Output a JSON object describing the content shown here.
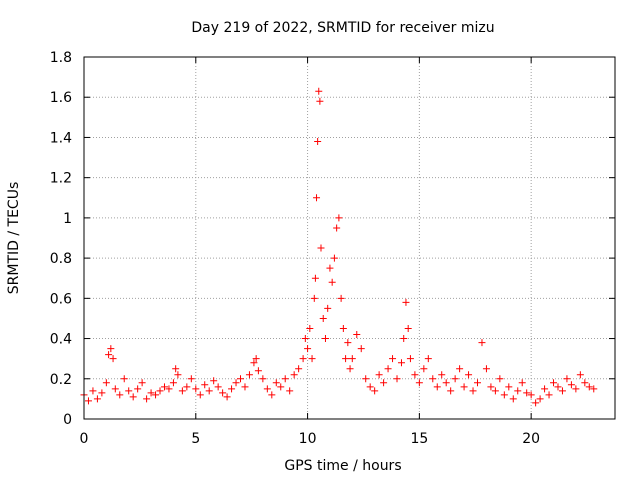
{
  "chart_data": {
    "type": "scatter",
    "title": "Day 219 of 2022, SRMTID for receiver mizu",
    "xlabel": "GPS time / hours",
    "ylabel": "SRMTID / TECUs",
    "xlim": [
      0,
      23.75
    ],
    "ylim": [
      0,
      1.8
    ],
    "xticks": [
      0,
      5,
      10,
      15,
      20
    ],
    "xtick_labels": [
      "0",
      "5",
      "10",
      "15",
      "20"
    ],
    "yticks": [
      0,
      0.2,
      0.4,
      0.6,
      0.8,
      1.0,
      1.2,
      1.4,
      1.6,
      1.8
    ],
    "ytick_labels": [
      "0",
      "0.2",
      "0.4",
      "0.6",
      "0.8",
      "1",
      "1.2",
      "1.4",
      "1.6",
      "1.8"
    ],
    "grid": true,
    "marker": "plus",
    "series": [
      {
        "name": "SRMTID",
        "color": "#ff0000",
        "x": [
          0.0,
          0.2,
          0.4,
          0.6,
          0.8,
          1.0,
          1.1,
          1.2,
          1.3,
          1.4,
          1.6,
          1.8,
          2.0,
          2.2,
          2.4,
          2.6,
          2.8,
          3.0,
          3.2,
          3.4,
          3.6,
          3.8,
          4.0,
          4.1,
          4.2,
          4.4,
          4.6,
          4.8,
          5.0,
          5.2,
          5.4,
          5.6,
          5.8,
          6.0,
          6.2,
          6.4,
          6.6,
          6.8,
          7.0,
          7.2,
          7.4,
          7.6,
          7.7,
          7.8,
          8.0,
          8.2,
          8.4,
          8.6,
          8.8,
          9.0,
          9.2,
          9.4,
          9.6,
          9.8,
          9.9,
          10.0,
          10.1,
          10.2,
          10.3,
          10.35,
          10.4,
          10.45,
          10.5,
          10.55,
          10.6,
          10.7,
          10.8,
          10.9,
          11.0,
          11.1,
          11.2,
          11.3,
          11.4,
          11.5,
          11.6,
          11.7,
          11.8,
          11.9,
          12.0,
          12.2,
          12.4,
          12.6,
          12.8,
          13.0,
          13.2,
          13.4,
          13.6,
          13.8,
          14.0,
          14.2,
          14.3,
          14.4,
          14.5,
          14.6,
          14.8,
          15.0,
          15.2,
          15.4,
          15.6,
          15.8,
          16.0,
          16.2,
          16.4,
          16.6,
          16.8,
          17.0,
          17.2,
          17.4,
          17.6,
          17.8,
          18.0,
          18.2,
          18.4,
          18.6,
          18.8,
          19.0,
          19.2,
          19.4,
          19.6,
          19.8,
          20.0,
          20.2,
          20.4,
          20.6,
          20.8,
          21.0,
          21.2,
          21.4,
          21.6,
          21.8,
          22.0,
          22.2,
          22.4,
          22.6,
          22.8
        ],
        "y": [
          0.12,
          0.09,
          0.14,
          0.1,
          0.13,
          0.18,
          0.32,
          0.35,
          0.3,
          0.15,
          0.12,
          0.2,
          0.14,
          0.11,
          0.15,
          0.18,
          0.1,
          0.13,
          0.12,
          0.14,
          0.16,
          0.15,
          0.18,
          0.25,
          0.22,
          0.14,
          0.16,
          0.2,
          0.15,
          0.12,
          0.17,
          0.14,
          0.19,
          0.16,
          0.13,
          0.11,
          0.15,
          0.18,
          0.2,
          0.16,
          0.22,
          0.28,
          0.3,
          0.24,
          0.2,
          0.15,
          0.12,
          0.18,
          0.16,
          0.2,
          0.14,
          0.22,
          0.25,
          0.3,
          0.4,
          0.35,
          0.45,
          0.3,
          0.6,
          0.7,
          1.1,
          1.38,
          1.63,
          1.58,
          0.85,
          0.5,
          0.4,
          0.55,
          0.75,
          0.68,
          0.8,
          0.95,
          1.0,
          0.6,
          0.45,
          0.3,
          0.38,
          0.25,
          0.3,
          0.42,
          0.35,
          0.2,
          0.16,
          0.14,
          0.22,
          0.18,
          0.25,
          0.3,
          0.2,
          0.28,
          0.4,
          0.58,
          0.45,
          0.3,
          0.22,
          0.18,
          0.25,
          0.3,
          0.2,
          0.16,
          0.22,
          0.18,
          0.14,
          0.2,
          0.25,
          0.16,
          0.22,
          0.14,
          0.18,
          0.38,
          0.25,
          0.16,
          0.14,
          0.2,
          0.12,
          0.16,
          0.1,
          0.14,
          0.18,
          0.13,
          0.12,
          0.08,
          0.1,
          0.15,
          0.12,
          0.18,
          0.16,
          0.14,
          0.2,
          0.17,
          0.15,
          0.22,
          0.18,
          0.16,
          0.15
        ]
      }
    ]
  }
}
